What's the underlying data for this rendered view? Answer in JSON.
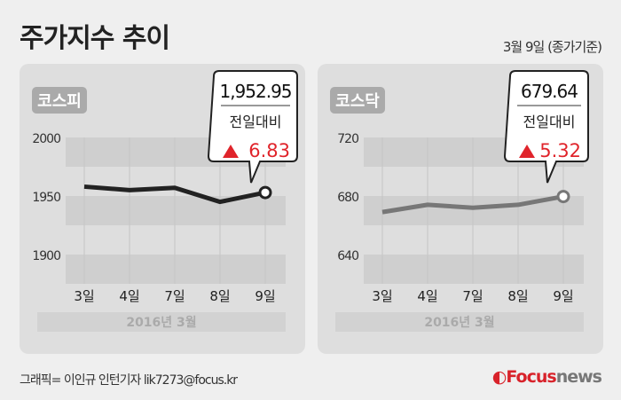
{
  "header": {
    "title": "주가지수 추이",
    "date": "3월 9일 (종가기준)"
  },
  "footer": {
    "credit": "그래픽= 이인규 인턴기자 lik7273@focus.kr",
    "logo": "Focusnews"
  },
  "colors": {
    "up": "#e0242b",
    "kospi_line": "#222222",
    "kosdaq_line": "#777777"
  },
  "chart_data": [
    {
      "type": "line",
      "label": "코스피",
      "categories": [
        "3일",
        "4일",
        "7일",
        "8일",
        "9일"
      ],
      "values": [
        1958,
        1955,
        1957,
        1945,
        1952.95
      ],
      "yticks": [
        "2000",
        "1950",
        "1900"
      ],
      "ylim": [
        1875,
        2000
      ],
      "xlabel": "2016년  3월",
      "callout": {
        "value": "1,952.95",
        "caption": "전일대비",
        "change": "6.83",
        "direction": "up"
      }
    },
    {
      "type": "line",
      "label": "코스닥",
      "categories": [
        "3일",
        "4일",
        "7일",
        "8일",
        "9일"
      ],
      "values": [
        669,
        674,
        672,
        674,
        679.64
      ],
      "yticks": [
        "720",
        "680",
        "640"
      ],
      "ylim": [
        620,
        720
      ],
      "xlabel": "2016년  3월",
      "callout": {
        "value": "679.64",
        "caption": "전일대비",
        "change": "5.32",
        "direction": "up"
      }
    }
  ]
}
